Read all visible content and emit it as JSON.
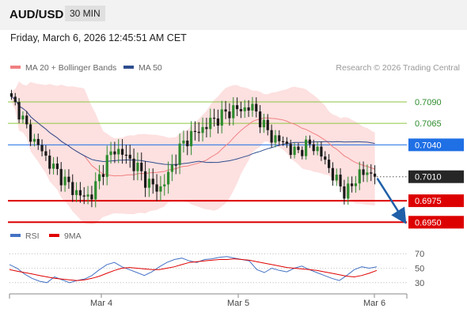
{
  "header": {
    "symbol": "AUD/USD",
    "timeframe": "30 MIN"
  },
  "datetime": "Friday, March 6, 2026 12:45:51 AM CET",
  "legend": {
    "ma20": {
      "label": "MA 20 + Bollinger Bands",
      "color": "#f08080"
    },
    "ma50": {
      "label": "MA 50",
      "color": "#2e4d8f"
    }
  },
  "credit": "Research © 2026 Trading Central",
  "rsi_legend": {
    "rsi": {
      "label": "RSI",
      "color": "#4472c4"
    },
    "ma9": {
      "label": "9MA",
      "color": "#e00000"
    }
  },
  "colors": {
    "bullish": "#2e8b2e",
    "bearish": "#1a1a1a",
    "bands": "#fde0e0",
    "target_arrow": "#1f5fa8"
  },
  "chart_data": {
    "type": "candlestick",
    "symbol": "AUD/USD",
    "interval": "30 MIN",
    "x_ticks": [
      "Mar 4",
      "Mar 5",
      "Mar 6"
    ],
    "ylim": [
      0.6942,
      0.7112
    ],
    "current_price": "0.7010",
    "levels": [
      {
        "value": 0.709,
        "label": "0.7090",
        "kind": "resistance-minor",
        "color": "#8dc63f"
      },
      {
        "value": 0.7065,
        "label": "0.7065",
        "kind": "resistance-minor",
        "color": "#8dc63f"
      },
      {
        "value": 0.704,
        "label": "0.7040",
        "kind": "pivot",
        "color": "#1f6fe5"
      },
      {
        "value": 0.6975,
        "label": "0.6975",
        "kind": "support",
        "color": "#dd0000"
      },
      {
        "value": 0.695,
        "label": "0.6950",
        "kind": "support",
        "color": "#dd0000"
      }
    ],
    "forecast": {
      "from": 0.701,
      "to": 0.695,
      "direction": "down"
    },
    "close_path": [
      0.7092,
      0.708,
      0.706,
      0.7045,
      0.7035,
      0.702,
      0.701,
      0.7,
      0.699,
      0.6983,
      0.6978,
      0.6985,
      0.7005,
      0.7025,
      0.7035,
      0.703,
      0.7022,
      0.7013,
      0.7,
      0.6992,
      0.6988,
      0.7002,
      0.7022,
      0.704,
      0.705,
      0.7055,
      0.706,
      0.7068,
      0.7072,
      0.7077,
      0.7082,
      0.708,
      0.7085,
      0.7078,
      0.7062,
      0.705,
      0.7045,
      0.7042,
      0.703,
      0.7035,
      0.704,
      0.7038,
      0.7025,
      0.701,
      0.6995,
      0.6985,
      0.6992,
      0.701,
      0.7004,
      0.701
    ],
    "rsi": {
      "ticks": [
        70,
        50,
        30
      ],
      "ylim": [
        20,
        80
      ],
      "rsi_values": [
        55,
        50,
        42,
        36,
        32,
        30,
        38,
        34,
        30,
        33,
        35,
        40,
        48,
        55,
        58,
        52,
        48,
        44,
        40,
        45,
        52,
        58,
        62,
        64,
        60,
        58,
        62,
        63,
        65,
        66,
        64,
        62,
        60,
        48,
        44,
        50,
        47,
        45,
        50,
        53,
        48,
        44,
        40,
        36,
        33,
        40,
        48,
        52,
        50,
        52
      ],
      "ma9_values": [
        48,
        46,
        44,
        42,
        40,
        38,
        36,
        35,
        34,
        33,
        34,
        36,
        39,
        43,
        47,
        50,
        51,
        50,
        49,
        48,
        48,
        50,
        52,
        55,
        58,
        59,
        60,
        61,
        62,
        62,
        63,
        62,
        61,
        59,
        57,
        55,
        53,
        51,
        50,
        49,
        48,
        47,
        45,
        43,
        41,
        39,
        38,
        40,
        43,
        47
      ]
    }
  }
}
